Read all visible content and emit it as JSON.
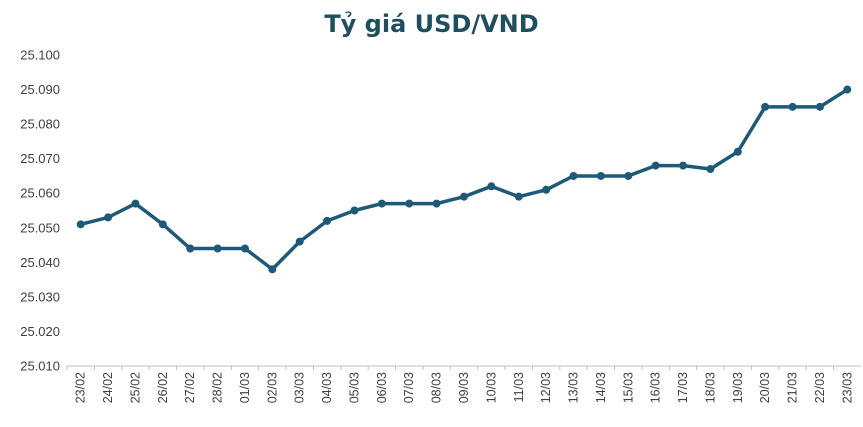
{
  "chart_data": {
    "type": "line",
    "title": "Tỷ giá USD/VND",
    "xlabel": "",
    "ylabel": "",
    "ylim": [
      25010,
      25100
    ],
    "y_ticks": [
      25010,
      25020,
      25030,
      25040,
      25050,
      25060,
      25070,
      25080,
      25090,
      25100
    ],
    "y_tick_labels": [
      "25.010",
      "25.020",
      "25.030",
      "25.040",
      "25.050",
      "25.060",
      "25.070",
      "25.080",
      "25.090",
      "25.100"
    ],
    "grid": false,
    "legend": "none",
    "colors": {
      "line": "#1e5a78",
      "axis": "#bfbfbf",
      "title": "#1f4e5f",
      "text": "#404040"
    },
    "categories": [
      "23/02",
      "24/02",
      "25/02",
      "26/02",
      "27/02",
      "28/02",
      "01/03",
      "02/03",
      "03/03",
      "04/03",
      "05/03",
      "06/03",
      "07/03",
      "08/03",
      "09/03",
      "10/03",
      "11/03",
      "12/03",
      "13/03",
      "14/03",
      "15/03",
      "16/03",
      "17/03",
      "18/03",
      "19/03",
      "20/03",
      "21/03",
      "22/03",
      "23/03"
    ],
    "series": [
      {
        "values": [
          25051,
          25053,
          25057,
          25051,
          25044,
          25044,
          25044,
          25038,
          25046,
          25052,
          25055,
          25057,
          25057,
          25057,
          25059,
          25062,
          25059,
          25061,
          25065,
          25065,
          25065,
          25068,
          25068,
          25067,
          25072,
          25085,
          25085,
          25085,
          25090
        ]
      }
    ]
  }
}
